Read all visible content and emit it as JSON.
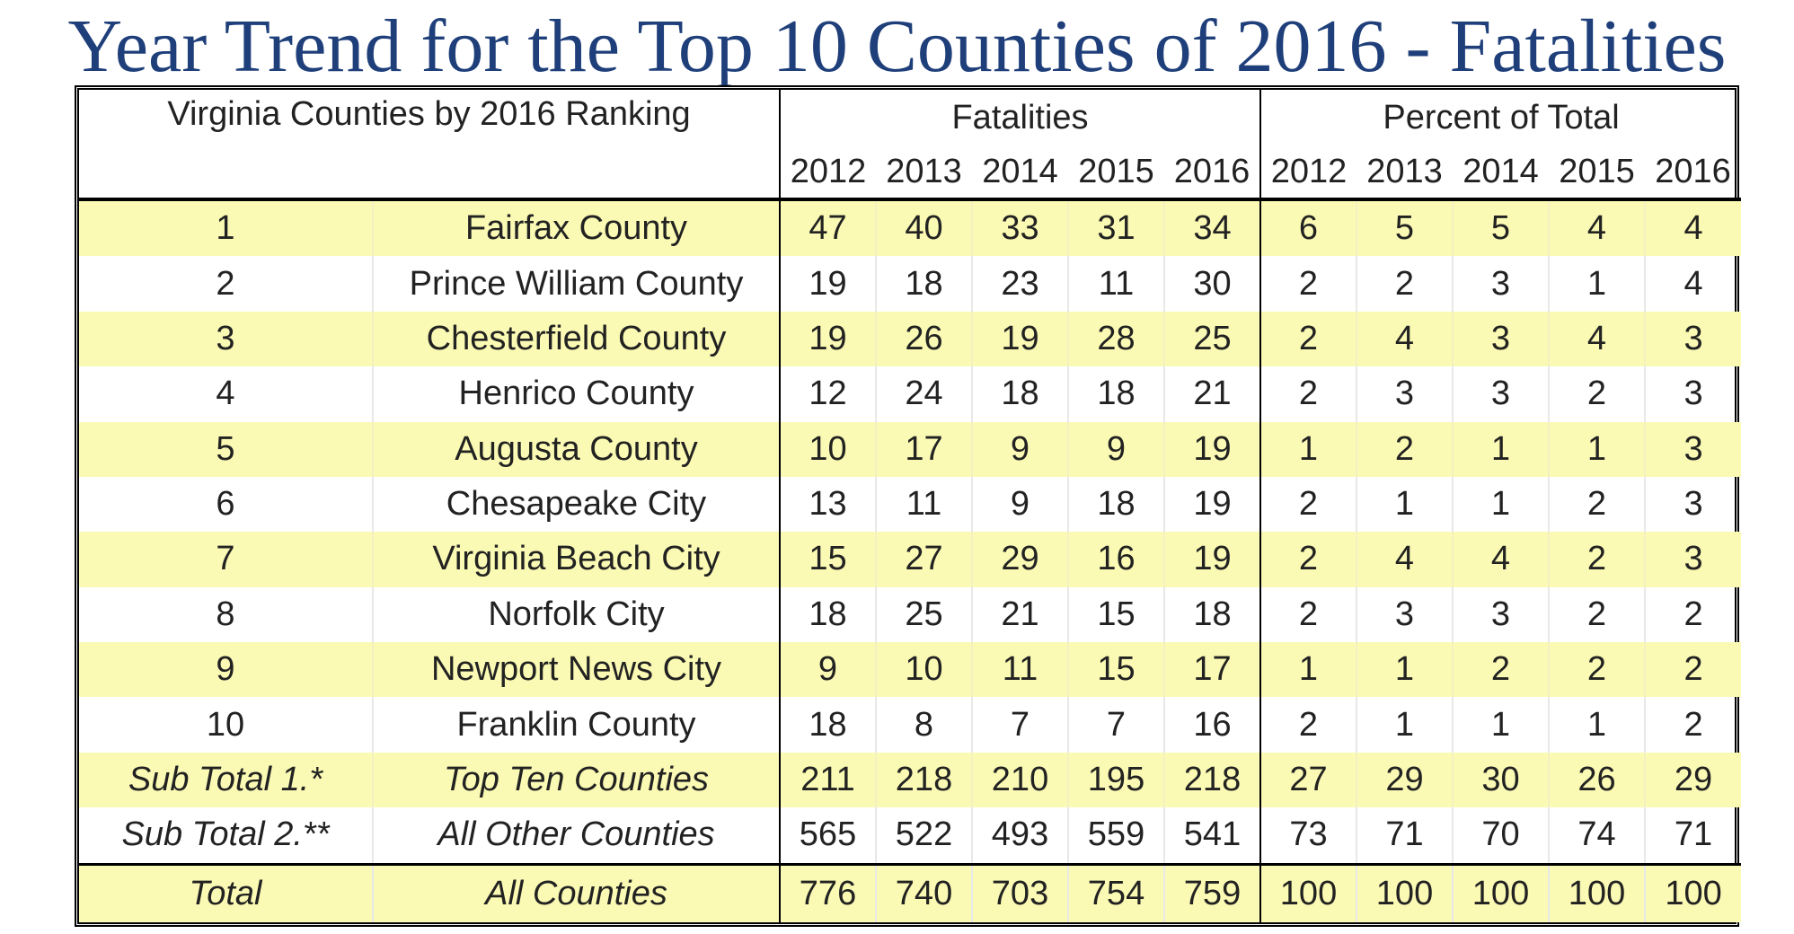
{
  "title": "Year Trend for the Top 10 Counties of 2016 - Fatalities",
  "header": {
    "label": "Virginia Counties by 2016 Ranking",
    "fatalities": "Fatalities",
    "percent": "Percent of Total",
    "years": [
      "2012",
      "2013",
      "2014",
      "2015",
      "2016"
    ]
  },
  "rows": [
    {
      "rank": "1",
      "name": "Fairfax County",
      "fat": [
        "47",
        "40",
        "33",
        "31",
        "34"
      ],
      "pct": [
        "6",
        "5",
        "5",
        "4",
        "4"
      ]
    },
    {
      "rank": "2",
      "name": "Prince William County",
      "fat": [
        "19",
        "18",
        "23",
        "11",
        "30"
      ],
      "pct": [
        "2",
        "2",
        "3",
        "1",
        "4"
      ]
    },
    {
      "rank": "3",
      "name": "Chesterfield County",
      "fat": [
        "19",
        "26",
        "19",
        "28",
        "25"
      ],
      "pct": [
        "2",
        "4",
        "3",
        "4",
        "3"
      ]
    },
    {
      "rank": "4",
      "name": "Henrico County",
      "fat": [
        "12",
        "24",
        "18",
        "18",
        "21"
      ],
      "pct": [
        "2",
        "3",
        "3",
        "2",
        "3"
      ]
    },
    {
      "rank": "5",
      "name": "Augusta County",
      "fat": [
        "10",
        "17",
        "9",
        "9",
        "19"
      ],
      "pct": [
        "1",
        "2",
        "1",
        "1",
        "3"
      ]
    },
    {
      "rank": "6",
      "name": "Chesapeake City",
      "fat": [
        "13",
        "11",
        "9",
        "18",
        "19"
      ],
      "pct": [
        "2",
        "1",
        "1",
        "2",
        "3"
      ]
    },
    {
      "rank": "7",
      "name": "Virginia Beach City",
      "fat": [
        "15",
        "27",
        "29",
        "16",
        "19"
      ],
      "pct": [
        "2",
        "4",
        "4",
        "2",
        "3"
      ]
    },
    {
      "rank": "8",
      "name": "Norfolk City",
      "fat": [
        "18",
        "25",
        "21",
        "15",
        "18"
      ],
      "pct": [
        "2",
        "3",
        "3",
        "2",
        "2"
      ]
    },
    {
      "rank": "9",
      "name": "Newport News City",
      "fat": [
        "9",
        "10",
        "11",
        "15",
        "17"
      ],
      "pct": [
        "1",
        "1",
        "2",
        "2",
        "2"
      ]
    },
    {
      "rank": "10",
      "name": "Franklin County",
      "fat": [
        "18",
        "8",
        "7",
        "7",
        "16"
      ],
      "pct": [
        "2",
        "1",
        "1",
        "1",
        "2"
      ]
    }
  ],
  "subtotal1": {
    "rank": "Sub Total 1.*",
    "name": "Top Ten Counties",
    "fat": [
      "211",
      "218",
      "210",
      "195",
      "218"
    ],
    "pct": [
      "27",
      "29",
      "30",
      "26",
      "29"
    ]
  },
  "subtotal2": {
    "rank": "Sub Total 2.**",
    "name": "All Other Counties",
    "fat": [
      "565",
      "522",
      "493",
      "559",
      "541"
    ],
    "pct": [
      "73",
      "71",
      "70",
      "74",
      "71"
    ]
  },
  "total": {
    "rank": "Total",
    "name": "All Counties",
    "fat": [
      "776",
      "740",
      "703",
      "754",
      "759"
    ],
    "pct": [
      "100",
      "100",
      "100",
      "100",
      "100"
    ]
  },
  "colors": {
    "title": "#1f3f7a",
    "highlight": "#fbfab4"
  }
}
